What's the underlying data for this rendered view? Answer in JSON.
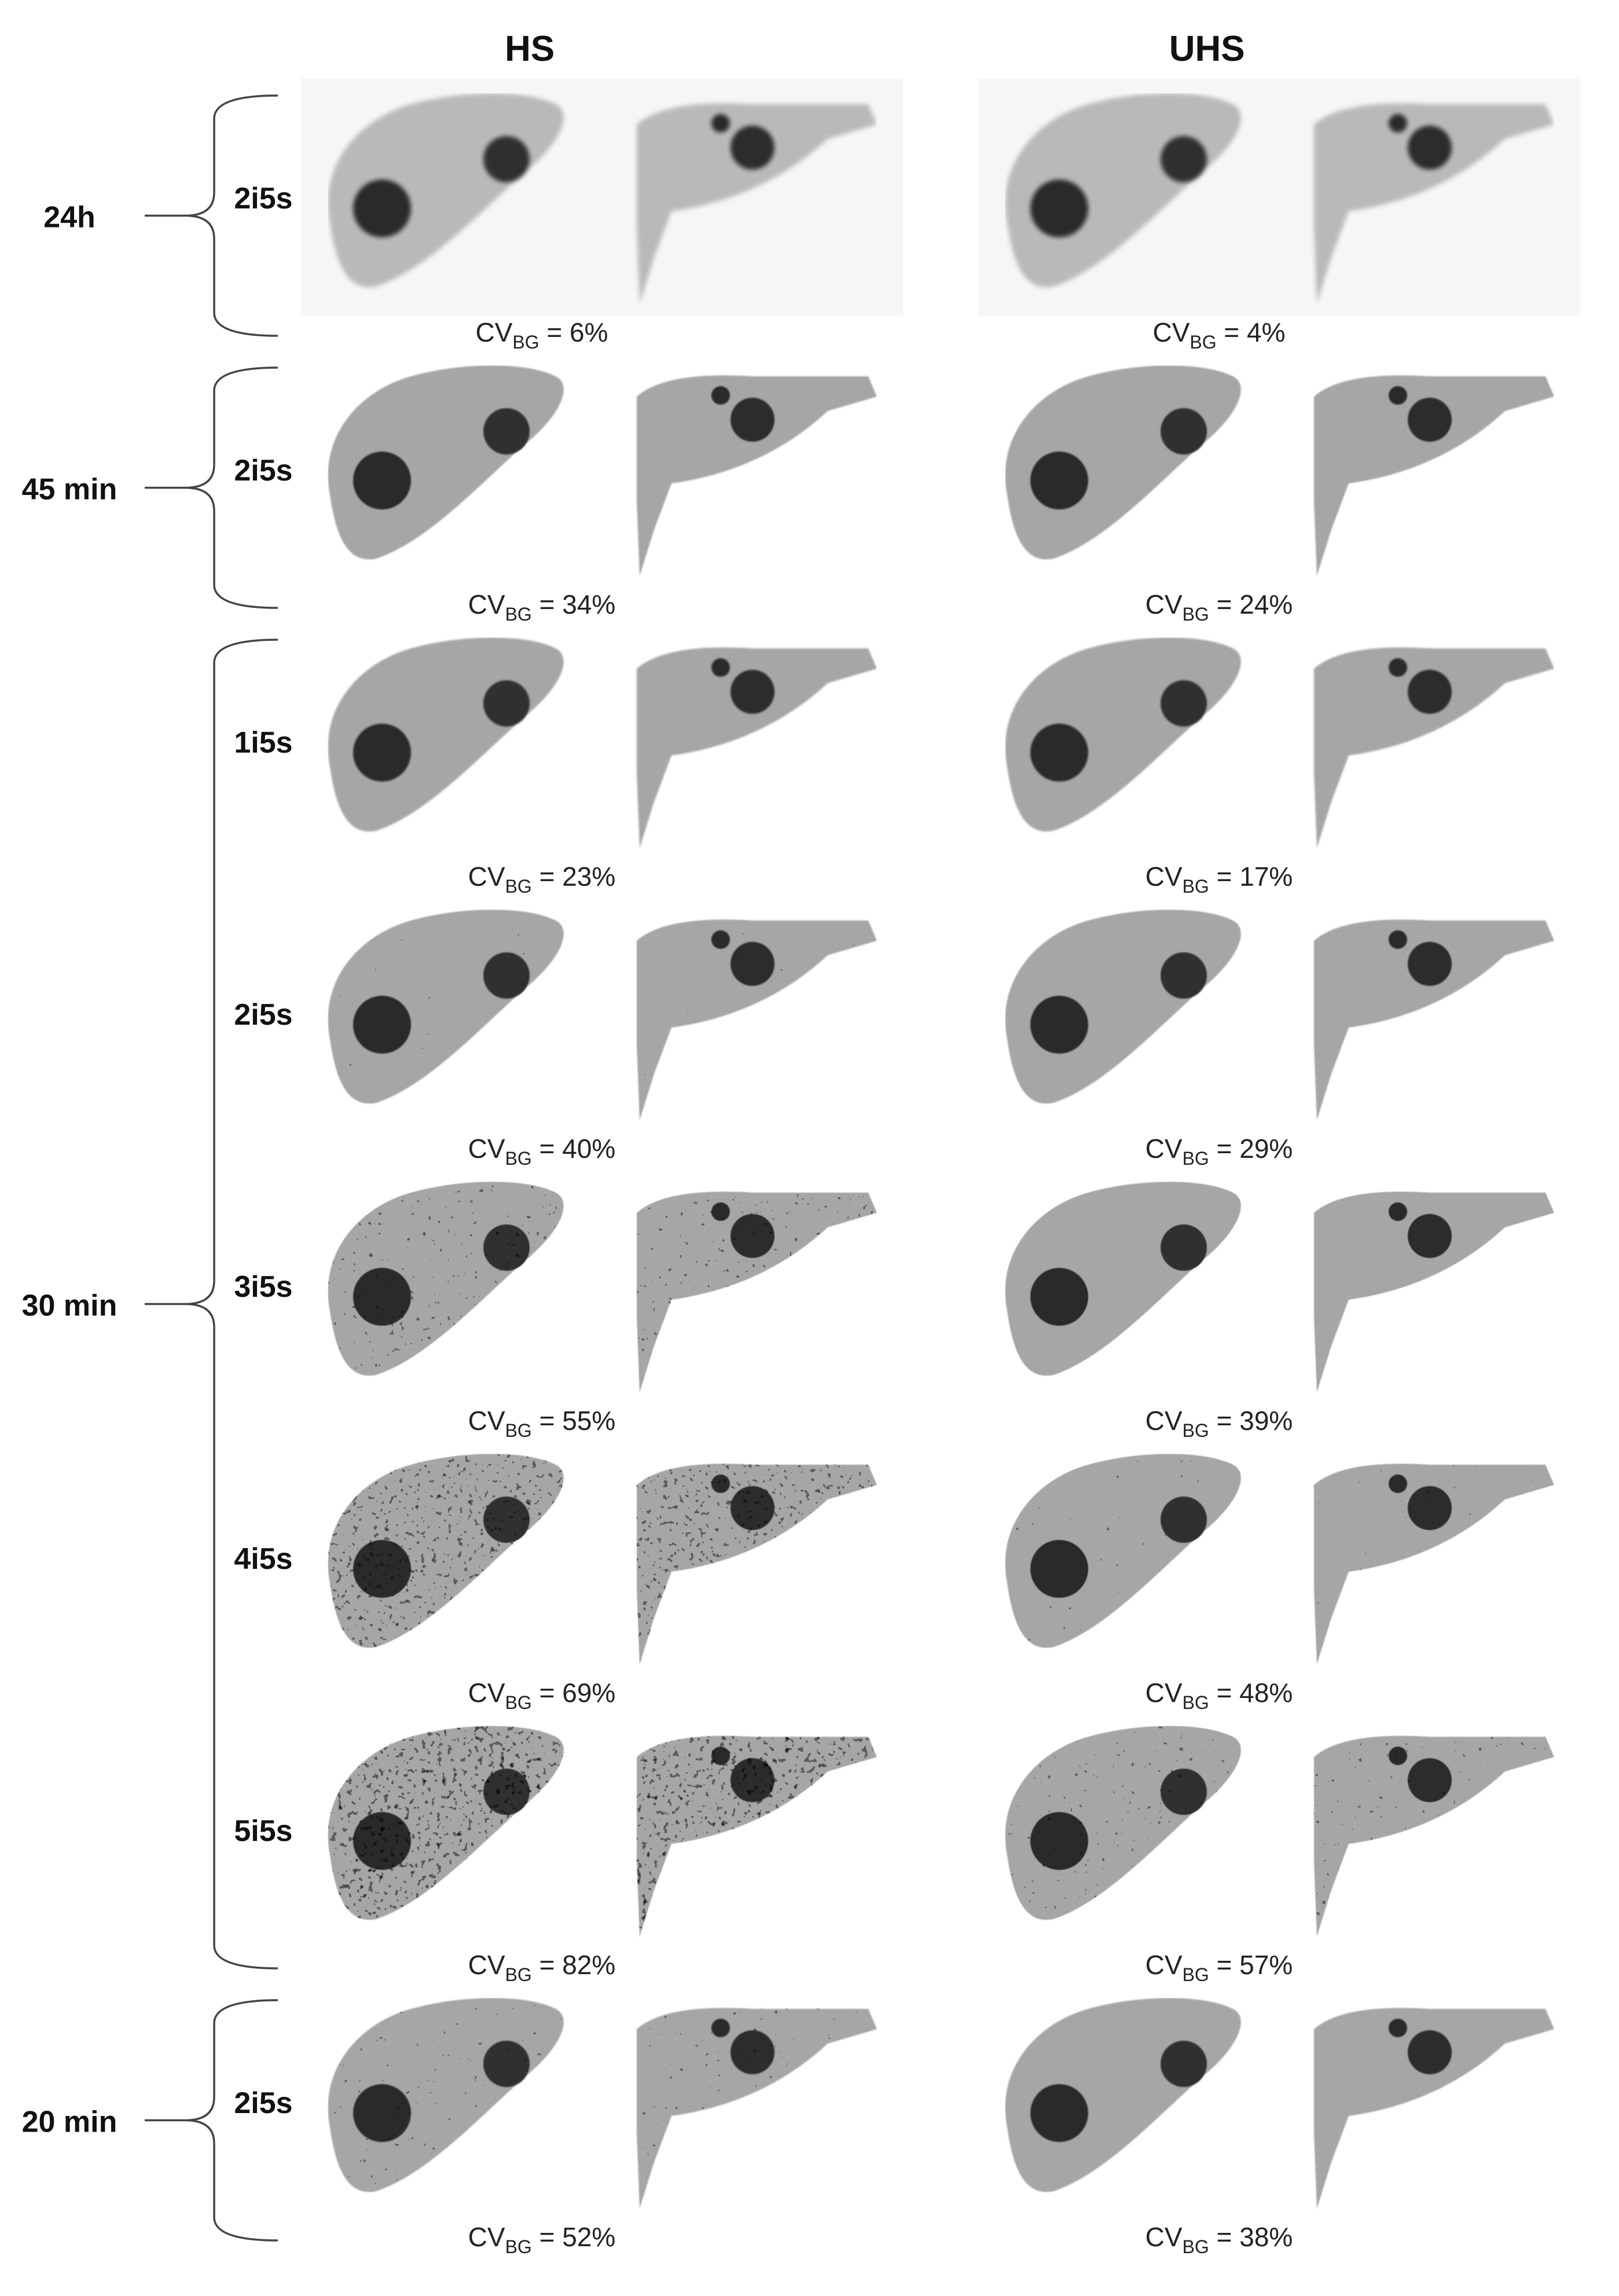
{
  "columns": [
    {
      "label": "HS",
      "noise_scale": 1.0
    },
    {
      "label": "UHS",
      "noise_scale": 0.7
    }
  ],
  "cv_prefix": "CV",
  "cv_subscript": "BG",
  "groups": [
    {
      "label": "24h",
      "row_indices": [
        0
      ]
    },
    {
      "label": "45 min",
      "row_indices": [
        1
      ]
    },
    {
      "label": "30 min",
      "row_indices": [
        2,
        3,
        4,
        5,
        6
      ]
    },
    {
      "label": "20 min",
      "row_indices": [
        7
      ]
    }
  ],
  "rows": [
    {
      "recon": "2i5s",
      "cv": [
        "6%",
        "4%"
      ],
      "noise": 0.0,
      "blur": 4.0
    },
    {
      "recon": "2i5s",
      "cv": [
        "34%",
        "24%"
      ],
      "noise": 0.55,
      "blur": 1.2
    },
    {
      "recon": "1i5s",
      "cv": [
        "23%",
        "17%"
      ],
      "noise": 0.38,
      "blur": 1.6
    },
    {
      "recon": "2i5s",
      "cv": [
        "40%",
        "29%"
      ],
      "noise": 0.62,
      "blur": 1.1
    },
    {
      "recon": "3i5s",
      "cv": [
        "55%",
        "39%"
      ],
      "noise": 0.78,
      "blur": 0.9
    },
    {
      "recon": "4i5s",
      "cv": [
        "69%",
        "48%"
      ],
      "noise": 0.92,
      "blur": 0.8
    },
    {
      "recon": "5i5s",
      "cv": [
        "82%",
        "57%"
      ],
      "noise": 1.05,
      "blur": 0.7
    },
    {
      "recon": "2i5s",
      "cv": [
        "52%",
        "38%"
      ],
      "noise": 0.72,
      "blur": 1.0
    }
  ]
}
